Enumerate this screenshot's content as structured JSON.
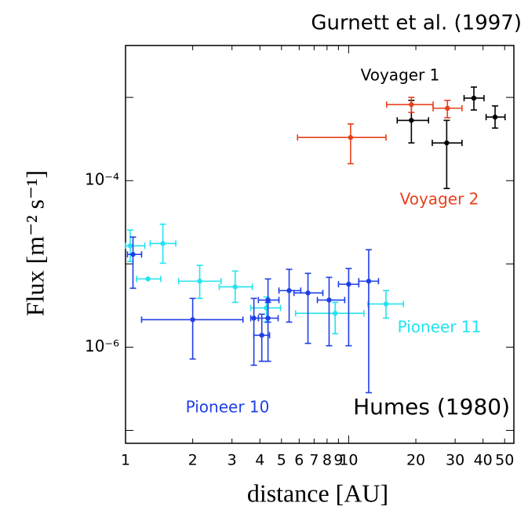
{
  "chart_data": {
    "type": "errorbar-scatter",
    "title": "Gurnett et al. (1997)",
    "annotation": "Humes (1980)",
    "x_label": "distance [AU]",
    "y_label": "Flux [m⁻² s⁻¹]",
    "log_x": true,
    "log_y": true,
    "xlim": [
      1,
      55
    ],
    "ylim": [
      7e-08,
      0.0042
    ],
    "xticks": [
      1,
      2,
      3,
      4,
      5,
      6,
      7,
      8,
      9,
      10,
      20,
      30,
      40,
      50
    ],
    "yticks": [
      {
        "value": 0.0001,
        "label": "10⁻⁴"
      },
      {
        "value": 1e-06,
        "label": "10⁻⁶"
      }
    ],
    "yticks_minor": [
      1e-07,
      1e-05,
      0.001
    ],
    "series": [
      {
        "name": "Voyager 1",
        "color": "#000000",
        "x": [
          19.1,
          27.5,
          36.4,
          45.3
        ],
        "values": [
          0.00053,
          0.000284,
          0.00098,
          0.00058
        ],
        "x_low": [
          16.5,
          23.7,
          32.9,
          41.3
        ],
        "x_high": [
          22.8,
          32.2,
          40.4,
          50.2
        ],
        "y_low": [
          0.000284,
          8.05e-05,
          0.000706,
          0.000428
        ],
        "y_high": [
          0.00092,
          0.00053,
          0.00133,
          0.00079
        ]
      },
      {
        "name": "Voyager 2",
        "color": "#e8401c",
        "x": [
          10.2,
          19.1,
          27.7
        ],
        "values": [
          0.00033,
          0.00082,
          0.00074
        ],
        "x_low": [
          5.9,
          14.8,
          23.9
        ],
        "x_high": [
          14.7,
          23.9,
          32.2
        ],
        "y_low": [
          0.00016,
          0.00066,
          0.00057
        ],
        "y_high": [
          0.00048,
          0.001,
          0.00092
        ]
      },
      {
        "name": "Pioneer 11",
        "color": "#22e3f0",
        "x": [
          1.05,
          1.26,
          1.47,
          2.15,
          3.1,
          4.28,
          8.7,
          14.7
        ],
        "values": [
          1.65e-05,
          6.6e-06,
          1.76e-05,
          6.2e-06,
          5.3e-06,
          2.96e-06,
          2.55e-06,
          3.3e-06
        ],
        "x_low": [
          1.0,
          1.12,
          1.29,
          1.73,
          2.63,
          3.64,
          5.78,
          12.2
        ],
        "x_high": [
          1.22,
          1.44,
          1.68,
          2.68,
          3.7,
          4.95,
          11.7,
          17.6
        ],
        "y_low": [
          1.07e-05,
          null,
          1.02e-05,
          3.85e-06,
          3.45e-06,
          2e-06,
          1.45e-06,
          2.23e-06
        ],
        "y_high": [
          2.55e-05,
          null,
          3e-05,
          9.6e-06,
          8.2e-06,
          4e-06,
          3.45e-06,
          4.78e-06
        ]
      },
      {
        "name": "Pioneer 10",
        "color": "#1f3fe6",
        "x": [
          1.08,
          2.0,
          3.76,
          4.08,
          4.35,
          4.35,
          5.41,
          6.57,
          8.17,
          10.0,
          12.3
        ],
        "values": [
          1.3e-05,
          2.14e-06,
          2.23e-06,
          1.39e-06,
          3.68e-06,
          2.23e-06,
          4.78e-06,
          4.48e-06,
          3.68e-06,
          5.7e-06,
          6.2e-06
        ],
        "x_low": [
          1.02,
          1.18,
          3.64,
          3.76,
          3.94,
          3.94,
          4.87,
          5.69,
          7.24,
          9.0,
          11.1
        ],
        "x_high": [
          1.18,
          3.36,
          3.94,
          4.42,
          4.87,
          4.83,
          6.1,
          7.66,
          9.6,
          11.1,
          13.6
        ],
        "y_low": [
          5.1e-06,
          7.2e-07,
          6.07e-07,
          6.76e-07,
          2e-06,
          6.76e-07,
          2e-06,
          1.11e-06,
          1.04e-06,
          1.04e-06,
          2.84e-07
        ],
        "y_high": [
          2.1e-05,
          3.85e-06,
          3.85e-06,
          2.49e-06,
          6.6e-06,
          3.45e-06,
          8.6e-06,
          7.7e-06,
          6.9e-06,
          8.8e-06,
          1.48e-05
        ]
      }
    ]
  }
}
